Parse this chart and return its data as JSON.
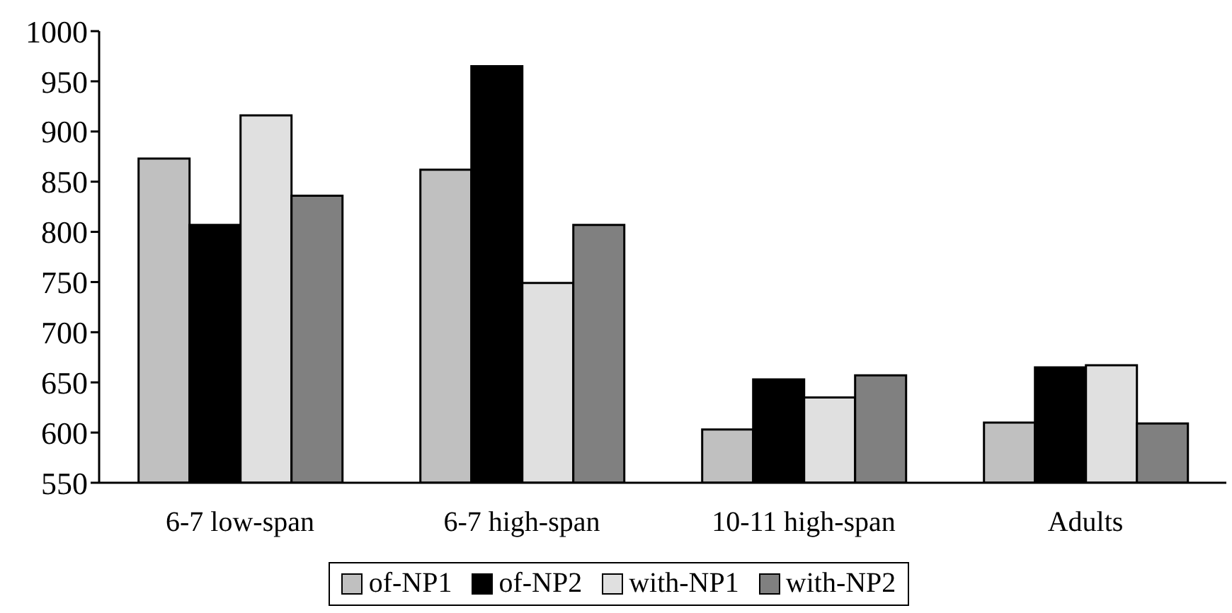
{
  "chart_data": {
    "type": "bar",
    "categories": [
      "6-7 low-span",
      "6-7 high-span",
      "10-11 high-span",
      "Adults"
    ],
    "series": [
      {
        "name": "of-NP1",
        "color": "#c0c0c0",
        "values": [
          873,
          862,
          603,
          610
        ]
      },
      {
        "name": "of-NP2",
        "color": "#000000",
        "values": [
          807,
          965,
          653,
          665
        ]
      },
      {
        "name": "with-NP1",
        "color": "#e0e0e0",
        "values": [
          916,
          749,
          635,
          667
        ]
      },
      {
        "name": "with-NP2",
        "color": "#808080",
        "values": [
          836,
          807,
          657,
          609
        ]
      }
    ],
    "ylim": [
      550,
      1000
    ],
    "yticks": [
      550,
      600,
      650,
      700,
      750,
      800,
      850,
      900,
      950,
      1000
    ],
    "grid": false,
    "legend": "bottom"
  }
}
